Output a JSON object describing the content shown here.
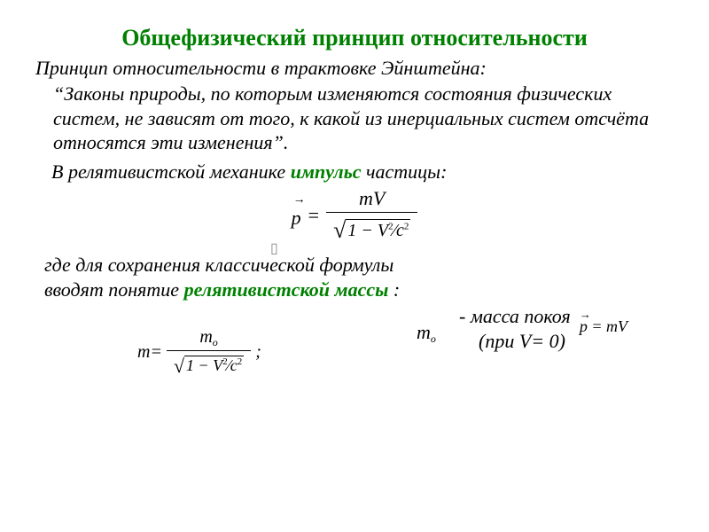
{
  "title": "Общефизический принцип относительности",
  "subtitle": "Принцип относительности в трактовке Эйнштейна:",
  "quote": "“Законы природы, по которым изменяются состояния физических  систем, не зависят от того, к какой из инерциальных систем отсчёта относятся  эти изменения”.",
  "line2_pre": "В релятивистской механике  ",
  "impulse_word": "импульс",
  "line2_post": "  частицы:",
  "formula1": {
    "lhs": "p",
    "eq": "=",
    "num": "mV",
    "den_root": "1 − ",
    "v2": "V",
    "c2": "c",
    "sup": "2"
  },
  "side_formula": {
    "text": "p = mV",
    "arrow": "→"
  },
  "line3a": "где для сохранения  классической формулы",
  "line3b_pre": "вводят понятие ",
  "relmass": "релятивистской массы",
  "line3b_post": " :",
  "formula_m": {
    "lhs": "m",
    "eq": " = ",
    "num": "m",
    "num_sub": "o",
    "den_root": "1 − ",
    "v2": "V",
    "c2": "c",
    "sup": "2",
    "semicolon": " ;"
  },
  "m0": {
    "sym": "m",
    "sub": "o"
  },
  "rest_mass_label": "- масса покоя",
  "v0_label": "(при V= 0)",
  "vec_box": "▯"
}
